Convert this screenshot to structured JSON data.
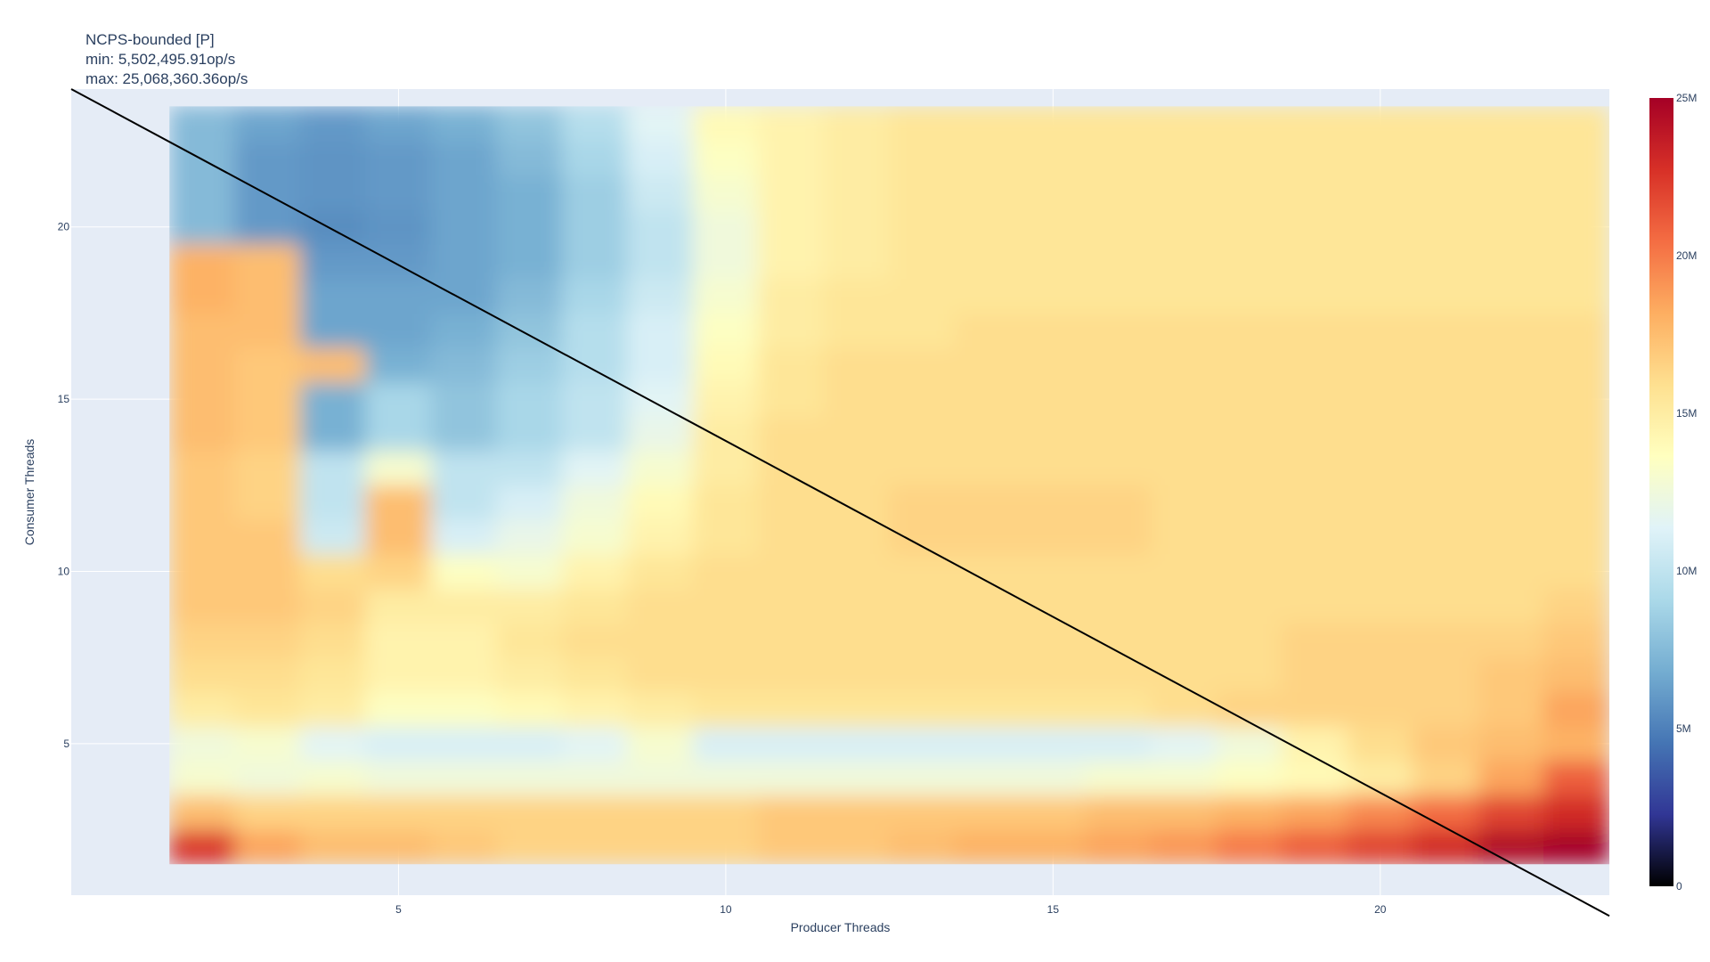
{
  "chart_data": {
    "type": "heatmap",
    "title": "NCPS-bounded [P]",
    "subtitle_lines": [
      "min: 5,502,495.91op/s",
      "max: 25,068,360.36op/s"
    ],
    "xlabel": "Producer Threads",
    "ylabel": "Consumer Threads",
    "x": [
      2,
      3,
      4,
      5,
      6,
      7,
      8,
      9,
      10,
      11,
      12,
      13,
      14,
      15,
      16,
      17,
      18,
      19,
      20,
      21,
      22,
      23
    ],
    "y": [
      2,
      3,
      4,
      5,
      6,
      7,
      8,
      9,
      10,
      11,
      12,
      13,
      14,
      15,
      16,
      17,
      18,
      19,
      20,
      21,
      22,
      23
    ],
    "xlim": [
      0,
      23.5
    ],
    "ylim": [
      0.6,
      24
    ],
    "x_ticks": [
      5,
      10,
      15,
      20
    ],
    "y_ticks": [
      5,
      10,
      15,
      20
    ],
    "z_unit": "op/s",
    "z_min": 5502495.91,
    "z_max": 25068360.36,
    "z_rows_millions": [
      [
        22.5,
        18.5,
        17.5,
        17.5,
        17.0,
        16.5,
        16.5,
        16.5,
        16.5,
        17.0,
        17.0,
        17.5,
        18.0,
        18.0,
        18.5,
        19.0,
        20.0,
        21.0,
        22.0,
        23.0,
        24.5,
        25.0
      ],
      [
        17.5,
        16.5,
        16.5,
        16.5,
        16.5,
        16.5,
        16.5,
        16.5,
        16.5,
        17.0,
        17.0,
        17.0,
        17.0,
        17.0,
        17.5,
        17.5,
        18.0,
        18.5,
        19.5,
        20.5,
        22.0,
        23.0
      ],
      [
        13.0,
        12.5,
        13.0,
        12.5,
        12.5,
        12.5,
        12.5,
        12.5,
        12.5,
        12.5,
        12.5,
        12.5,
        12.5,
        12.5,
        13.0,
        13.0,
        13.5,
        14.0,
        15.0,
        16.5,
        18.5,
        21.0
      ],
      [
        12.5,
        13.0,
        11.5,
        11.0,
        11.0,
        11.0,
        11.5,
        13.0,
        11.0,
        11.0,
        11.0,
        11.0,
        11.0,
        11.0,
        11.0,
        11.5,
        12.5,
        14.5,
        16.0,
        17.0,
        17.5,
        18.0
      ],
      [
        15.0,
        15.5,
        15.0,
        13.5,
        13.5,
        14.0,
        14.5,
        15.0,
        15.5,
        15.5,
        15.5,
        15.5,
        15.5,
        15.5,
        15.5,
        16.0,
        16.5,
        16.5,
        16.5,
        16.5,
        17.0,
        18.5
      ],
      [
        16.0,
        16.0,
        15.5,
        14.5,
        14.5,
        15.0,
        15.5,
        16.0,
        16.0,
        16.0,
        16.0,
        16.0,
        16.0,
        16.0,
        16.0,
        16.0,
        16.0,
        16.5,
        16.5,
        16.5,
        17.0,
        17.5
      ],
      [
        16.5,
        16.5,
        16.0,
        14.5,
        14.5,
        15.5,
        16.0,
        16.0,
        16.0,
        16.0,
        16.0,
        16.0,
        16.0,
        16.0,
        16.0,
        16.0,
        16.0,
        16.5,
        16.5,
        16.5,
        16.5,
        17.0
      ],
      [
        17.0,
        17.0,
        16.5,
        15.0,
        15.0,
        15.0,
        15.5,
        16.0,
        16.0,
        16.0,
        16.0,
        16.0,
        16.0,
        16.0,
        16.0,
        16.0,
        16.0,
        16.0,
        16.0,
        16.0,
        16.0,
        16.5
      ],
      [
        17.0,
        17.0,
        16.0,
        16.5,
        13.5,
        13.0,
        14.5,
        15.5,
        16.0,
        16.0,
        16.0,
        16.0,
        16.0,
        16.0,
        16.0,
        16.0,
        16.0,
        16.0,
        16.0,
        16.0,
        16.0,
        16.0
      ],
      [
        17.0,
        17.0,
        10.5,
        17.5,
        11.0,
        12.0,
        13.0,
        14.5,
        15.5,
        16.0,
        16.0,
        16.5,
        16.5,
        16.5,
        16.5,
        16.0,
        16.0,
        16.0,
        16.0,
        16.0,
        16.0,
        16.0
      ],
      [
        17.0,
        16.5,
        10.0,
        17.5,
        10.0,
        11.0,
        12.5,
        14.0,
        15.5,
        16.0,
        16.0,
        16.5,
        16.5,
        16.5,
        16.5,
        16.0,
        16.0,
        16.0,
        16.0,
        16.0,
        16.0,
        16.0
      ],
      [
        17.0,
        16.5,
        10.0,
        13.0,
        10.0,
        10.0,
        11.5,
        13.0,
        15.0,
        16.0,
        16.0,
        16.0,
        16.0,
        16.0,
        16.0,
        16.0,
        16.0,
        16.0,
        16.0,
        16.0,
        16.0,
        16.0
      ],
      [
        17.5,
        17.0,
        7.0,
        9.0,
        8.0,
        9.0,
        10.0,
        12.0,
        15.0,
        16.0,
        16.0,
        16.0,
        16.0,
        16.0,
        16.0,
        16.0,
        16.0,
        16.0,
        16.0,
        16.0,
        16.0,
        16.0
      ],
      [
        17.5,
        17.0,
        7.0,
        9.0,
        8.0,
        9.0,
        10.0,
        11.5,
        14.5,
        15.5,
        16.0,
        16.0,
        16.0,
        16.0,
        16.0,
        16.0,
        16.0,
        16.0,
        16.0,
        16.0,
        16.0,
        16.0
      ],
      [
        17.5,
        17.0,
        17.5,
        7.0,
        7.5,
        8.5,
        9.5,
        11.0,
        14.0,
        15.5,
        16.0,
        16.0,
        16.0,
        16.0,
        16.0,
        16.0,
        16.0,
        16.0,
        16.0,
        16.0,
        16.0,
        16.0
      ],
      [
        17.5,
        17.5,
        6.5,
        6.5,
        7.0,
        8.0,
        9.5,
        11.0,
        13.5,
        15.0,
        15.5,
        15.5,
        16.0,
        16.0,
        16.0,
        16.0,
        16.0,
        16.0,
        16.0,
        16.0,
        16.0,
        16.0
      ],
      [
        18.0,
        17.5,
        6.5,
        6.5,
        6.5,
        7.5,
        9.0,
        10.5,
        13.0,
        15.0,
        15.5,
        15.5,
        15.5,
        15.5,
        15.5,
        15.5,
        15.5,
        15.5,
        15.5,
        15.5,
        15.5,
        15.5
      ],
      [
        18.0,
        17.5,
        6.0,
        6.0,
        6.5,
        7.0,
        8.5,
        10.0,
        12.5,
        14.5,
        15.0,
        15.5,
        15.5,
        15.5,
        15.5,
        15.5,
        15.5,
        15.5,
        15.5,
        15.5,
        15.5,
        15.5
      ],
      [
        7.5,
        6.0,
        5.5,
        5.8,
        6.5,
        7.0,
        8.5,
        10.0,
        12.5,
        14.5,
        15.0,
        15.5,
        15.5,
        15.5,
        15.5,
        15.5,
        15.5,
        15.5,
        15.5,
        15.5,
        15.5,
        15.5
      ],
      [
        7.5,
        6.0,
        5.8,
        6.0,
        6.5,
        7.0,
        8.5,
        10.5,
        13.0,
        14.5,
        15.0,
        15.5,
        15.5,
        15.5,
        15.5,
        15.5,
        15.5,
        15.5,
        15.5,
        15.5,
        15.5,
        15.5
      ],
      [
        7.5,
        6.0,
        5.8,
        6.0,
        6.5,
        7.5,
        9.0,
        11.0,
        13.5,
        14.5,
        15.0,
        15.5,
        15.5,
        15.5,
        15.5,
        15.5,
        15.5,
        15.5,
        15.5,
        15.5,
        15.5,
        15.5
      ],
      [
        7.5,
        6.5,
        6.0,
        6.5,
        7.0,
        8.0,
        9.5,
        11.5,
        14.0,
        14.5,
        15.0,
        15.5,
        15.5,
        15.5,
        15.5,
        15.5,
        15.5,
        15.5,
        15.5,
        15.5,
        15.5,
        15.5
      ]
    ],
    "diagonal_line": {
      "from": [
        0,
        24
      ],
      "to": [
        23.5,
        0
      ],
      "color": "#000000"
    },
    "colorbar": {
      "ticks": [
        0,
        5,
        10,
        15,
        20,
        25
      ],
      "tick_labels": [
        "0",
        "5M",
        "10M",
        "15M",
        "20M",
        "25M"
      ],
      "colorscale": [
        "#000000",
        "#313695",
        "#4575b4",
        "#74add1",
        "#abd9e9",
        "#e0f3f8",
        "#ffffbf",
        "#fee090",
        "#fdae61",
        "#f46d43",
        "#d73027",
        "#a50026"
      ]
    },
    "grid": true,
    "plot_bgcolor": "#e5ecf6"
  }
}
